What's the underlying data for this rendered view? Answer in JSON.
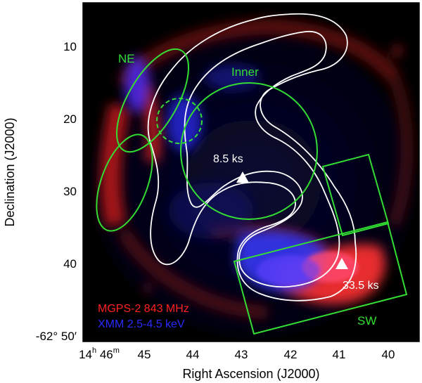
{
  "axes": {
    "xlabel": "Right Ascension (J2000)",
    "ylabel": "Declination (J2000)",
    "x_ticks": [
      {
        "main": "14",
        "h": "h",
        "mid": "46",
        "m": "m"
      },
      {
        "text": "45"
      },
      {
        "text": "44"
      },
      {
        "text": "43"
      },
      {
        "text": "42"
      },
      {
        "text": "41"
      },
      {
        "text": "40"
      }
    ],
    "y_ticks": [
      {
        "text": "10"
      },
      {
        "text": "20"
      },
      {
        "text": "30"
      },
      {
        "text": "40"
      },
      {
        "text": "-62° 50′"
      }
    ]
  },
  "regions": {
    "ne_label": "NE",
    "inner_label": "Inner",
    "sw_label": "SW",
    "inner_exposure": "8.5 ks",
    "sw_exposure": "33.5 ks"
  },
  "legend": {
    "radio": "MGPS-2 843 MHz",
    "xray": "XMM 2.5-4.5 keV"
  },
  "colors": {
    "region": "#33dd33",
    "radio": "#ff2020",
    "xray": "#2a2aff",
    "contour": "#ffffff",
    "background": "#000000"
  }
}
